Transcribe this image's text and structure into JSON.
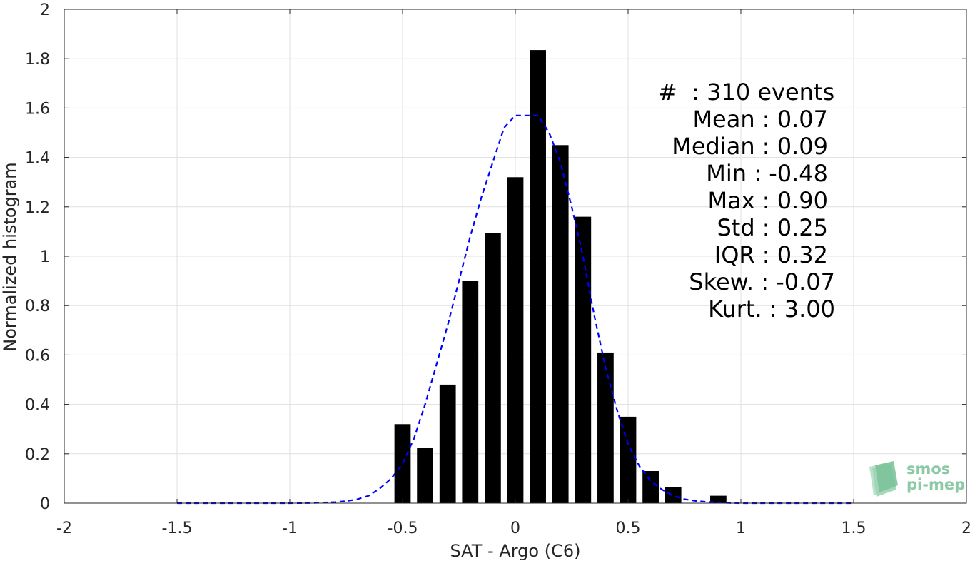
{
  "chart_data": {
    "type": "bar",
    "xlabel": "SAT - Argo (C6)",
    "ylabel": "Normalized histogram",
    "xlim": [
      -2,
      2
    ],
    "ylim": [
      0,
      2
    ],
    "x_ticks": [
      "-2",
      "-1.5",
      "-1",
      "-0.5",
      "0",
      "0.5",
      "1",
      "1.5",
      "2"
    ],
    "y_ticks": [
      "0",
      "0.2",
      "0.4",
      "0.6",
      "0.8",
      "1",
      "1.2",
      "1.4",
      "1.6",
      "1.8",
      "2"
    ],
    "grid": true,
    "bar_color": "#000000",
    "bars": [
      {
        "x": -0.5,
        "value": 0.32
      },
      {
        "x": -0.4,
        "value": 0.225
      },
      {
        "x": -0.3,
        "value": 0.48
      },
      {
        "x": -0.2,
        "value": 0.9
      },
      {
        "x": -0.1,
        "value": 1.095
      },
      {
        "x": 0.0,
        "value": 1.32
      },
      {
        "x": 0.1,
        "value": 1.835
      },
      {
        "x": 0.2,
        "value": 1.45
      },
      {
        "x": 0.3,
        "value": 1.16
      },
      {
        "x": 0.4,
        "value": 0.61
      },
      {
        "x": 0.5,
        "value": 0.35
      },
      {
        "x": 0.6,
        "value": 0.13
      },
      {
        "x": 0.7,
        "value": 0.065
      },
      {
        "x": 0.9,
        "value": 0.03
      }
    ],
    "fit_curve": {
      "style": "dashed",
      "color": "#0000ff",
      "x": [
        -1.5,
        -1.3,
        -1.1,
        -1.0,
        -0.9,
        -0.8,
        -0.75,
        -0.7,
        -0.65,
        -0.6,
        -0.55,
        -0.5,
        -0.45,
        -0.4,
        -0.35,
        -0.3,
        -0.25,
        -0.2,
        -0.15,
        -0.1,
        -0.05,
        0.0,
        0.05,
        0.1,
        0.15,
        0.2,
        0.25,
        0.3,
        0.35,
        0.4,
        0.45,
        0.5,
        0.55,
        0.6,
        0.65,
        0.7,
        0.75,
        0.8,
        0.85,
        0.9,
        0.95,
        1.0,
        1.2,
        1.5
      ],
      "y": [
        0.0,
        0.0,
        0.0,
        0.0,
        0.001,
        0.004,
        0.008,
        0.016,
        0.03,
        0.06,
        0.1,
        0.16,
        0.26,
        0.4,
        0.56,
        0.72,
        0.9,
        1.08,
        1.24,
        1.38,
        1.52,
        1.57,
        1.57,
        1.57,
        1.5,
        1.38,
        1.2,
        1.0,
        0.76,
        0.55,
        0.38,
        0.24,
        0.15,
        0.09,
        0.055,
        0.03,
        0.016,
        0.009,
        0.005,
        0.003,
        0.001,
        0.0,
        0.0,
        0.0
      ]
    }
  },
  "stats": [
    {
      "key": "#",
      "sep": "  :",
      "val": " 310 events"
    },
    {
      "key": "Mean",
      "sep": " :",
      "val": " 0.07"
    },
    {
      "key": "Median",
      "sep": " :",
      "val": " 0.09"
    },
    {
      "key": "Min",
      "sep": " :",
      "val": " -0.48"
    },
    {
      "key": "Max",
      "sep": " :",
      "val": " 0.90"
    },
    {
      "key": "Std",
      "sep": " :",
      "val": " 0.25"
    },
    {
      "key": "IQR",
      "sep": " :",
      "val": " 0.32"
    },
    {
      "key": "Skew.",
      "sep": " :",
      "val": " -0.07"
    },
    {
      "key": "Kurt.",
      "sep": " :",
      "val": " 3.00"
    }
  ],
  "logo": {
    "line1": "smos",
    "line2": "pi-mep",
    "color": "#8cc9a6"
  }
}
